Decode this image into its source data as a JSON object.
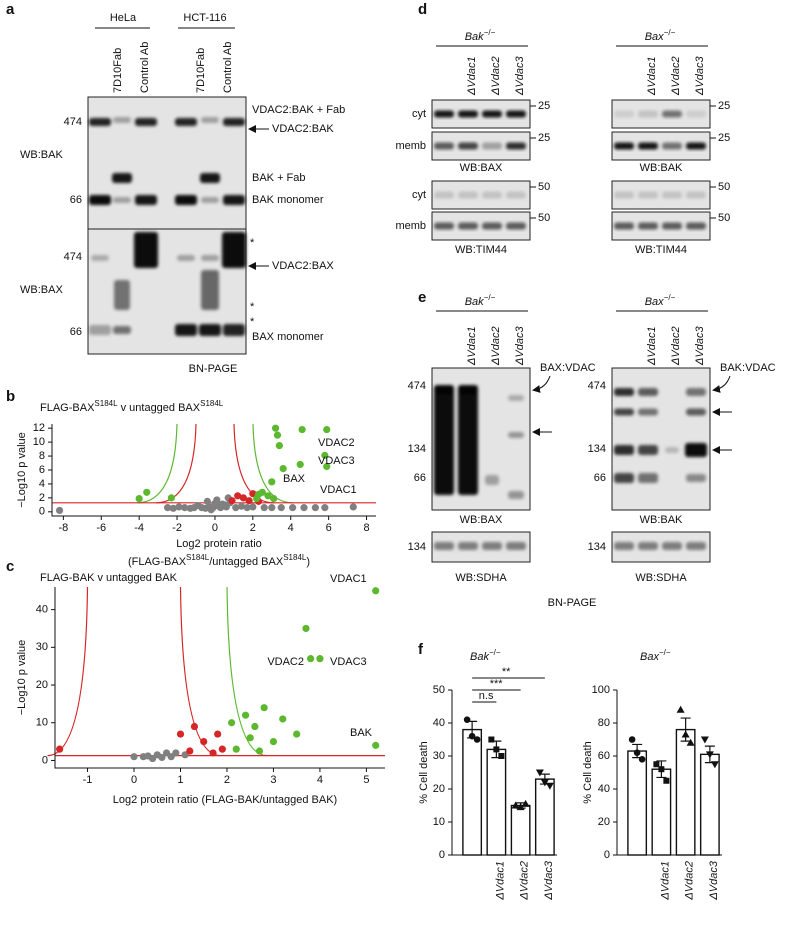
{
  "figure": {
    "panel_a": {
      "panel": "a",
      "cell_lines": [
        "HeLa",
        "HCT-116"
      ],
      "lanes": [
        "7D10Fab",
        "Control Ab",
        "7D10Fab",
        "Control Ab"
      ],
      "blots": [
        {
          "label": "WB:BAK",
          "markers": [
            "474",
            "66"
          ],
          "annotations": [
            "VDAC2:BAK + Fab",
            "VDAC2:BAK",
            "BAK + Fab",
            "BAK monomer"
          ]
        },
        {
          "label": "WB:BAX",
          "markers": [
            "474",
            "66"
          ],
          "annotations": [
            "*",
            "VDAC2:BAX",
            "*",
            "*",
            "BAX monomer"
          ]
        }
      ],
      "footer": "BN-PAGE"
    },
    "panel_d": {
      "panel": "d",
      "rows": [
        "cyt",
        "memb",
        "cyt",
        "memb"
      ],
      "blots": [
        {
          "genotype": [
            "Bak",
            "−/−"
          ],
          "lanes": [
            "ΔVdac1",
            "ΔVdac2",
            "ΔVdac3"
          ],
          "markers": [
            "25",
            "25",
            "50",
            "50"
          ],
          "labels": [
            "WB:BAX",
            "WB:TIM44"
          ]
        },
        {
          "genotype": [
            "Bax",
            "−/−"
          ],
          "lanes": [
            "ΔVdac1",
            "ΔVdac2",
            "ΔVdac3"
          ],
          "markers": [
            "25",
            "25",
            "50",
            "50"
          ],
          "labels": [
            "WB:BAK",
            "WB:TIM44"
          ]
        }
      ]
    },
    "panel_e": {
      "panel": "e",
      "blots": [
        {
          "genotype": [
            "Bak",
            "−/−"
          ],
          "lanes": [
            "ΔVdac1",
            "ΔVdac2",
            "ΔVdac3"
          ],
          "markers": [
            "474",
            "134",
            "66"
          ],
          "complex": "BAX:VDAC",
          "label": "WB:BAX",
          "loading_marker": "134",
          "loading_label": "WB:SDHA"
        },
        {
          "genotype": [
            "Bax",
            "−/−"
          ],
          "lanes": [
            "ΔVdac1",
            "ΔVdac2",
            "ΔVdac3"
          ],
          "markers": [
            "474",
            "134",
            "66"
          ],
          "complex": "BAK:VDAC",
          "label": "WB:BAK",
          "loading_marker": "134",
          "loading_label": "WB:SDHA"
        }
      ],
      "footer": "BN-PAGE"
    }
  },
  "chart_data": [
    {
      "type": "scatter",
      "panel": "b",
      "title": [
        "FLAG-BAX",
        "S184L",
        " v untagged BAX",
        "S184L"
      ],
      "xlabel": [
        [
          "Log2 protein ratio"
        ],
        [
          "(FLAG-BAX",
          "S184L",
          "/untagged BAX",
          "S184L",
          ")"
        ]
      ],
      "ylabel": "−Log10 p value",
      "xlim": [
        -8.6,
        8.5
      ],
      "ylim": [
        -0.6,
        12.6
      ],
      "xticks": [
        -8,
        -6,
        -4,
        -2,
        0,
        2,
        4,
        6,
        8
      ],
      "yticks": [
        0,
        2,
        4,
        6,
        8,
        10,
        12
      ],
      "series": [
        {
          "color": "#808080",
          "x": [
            -8.2,
            -2.5,
            -2.2,
            -1.9,
            -1.6,
            -1.3,
            -1.1,
            -0.9,
            -0.7,
            -0.5,
            -0.3,
            -0.1,
            0,
            0.2,
            0.3,
            0.5,
            0.6,
            0.8,
            1.1,
            1.4,
            1.7,
            2.0,
            2.6,
            3.0,
            3.5,
            4.1,
            4.7,
            5.3,
            5.8,
            7.3,
            -0.4,
            0.1,
            0.4,
            -0.2,
            0.7
          ],
          "y": [
            0.2,
            0.6,
            0.5,
            0.7,
            0.6,
            0.5,
            0.6,
            0.9,
            0.6,
            0.5,
            0.7,
            0.6,
            1.2,
            0.8,
            0.6,
            1.0,
            0.7,
            1.3,
            0.6,
            0.8,
            0.6,
            0.7,
            0.6,
            0.6,
            0.6,
            0.6,
            0.6,
            0.6,
            0.6,
            0.7,
            1.5,
            1.7,
            1.1,
            0.3,
            2.0
          ]
        },
        {
          "color": "#d62728",
          "x": [
            0.9,
            1.2,
            1.5,
            1.8,
            2.0,
            2.3
          ],
          "y": [
            1.6,
            2.3,
            2.0,
            1.6,
            2.6,
            1.5
          ]
        },
        {
          "color": "#5cb82e",
          "x": [
            4.6,
            5.9,
            3.2,
            3.4,
            3.3,
            5.8,
            4.5,
            5.9,
            3.6,
            3.0,
            2.5,
            -4.0,
            -3.6,
            -2.3,
            2.3,
            2.8,
            3.1,
            2.2
          ],
          "y": [
            11.8,
            11.8,
            12.0,
            9.5,
            11.0,
            8.1,
            6.8,
            6.5,
            6.2,
            4.3,
            2.8,
            1.9,
            2.8,
            2.0,
            2.5,
            2.3,
            1.9,
            1.9
          ]
        }
      ],
      "annotations": [
        "VDAC2",
        "VDAC3",
        "BAX",
        "VDAC1"
      ]
    },
    {
      "type": "scatter",
      "panel": "c",
      "title": [
        "FLAG-BAK v untagged BAK"
      ],
      "xlabel": [
        [
          "Log2 protein ratio (FLAG-BAK/untagged BAK)"
        ]
      ],
      "ylabel": "−Log10 p value",
      "xlim": [
        -1.7,
        5.4
      ],
      "ylim": [
        -2,
        46
      ],
      "xticks": [
        -1,
        0,
        1,
        2,
        3,
        4,
        5
      ],
      "yticks": [
        0,
        10,
        20,
        30,
        40
      ],
      "series": [
        {
          "color": "#808080",
          "x": [
            0,
            0.2,
            0.4,
            0.5,
            0.7,
            0.8,
            0.9,
            1.1,
            0.3,
            0.6
          ],
          "y": [
            1,
            1,
            0.5,
            1.5,
            2,
            1,
            2,
            1.5,
            1.2,
            0.8
          ]
        },
        {
          "color": "#d62728",
          "x": [
            -1.6,
            1.0,
            1.3,
            1.5,
            1.8,
            1.9,
            1.2,
            1.7
          ],
          "y": [
            3,
            7,
            9,
            5,
            7,
            3,
            2.5,
            2
          ]
        },
        {
          "color": "#5cb82e",
          "x": [
            5.2,
            3.7,
            4.0,
            3.8,
            5.2,
            2.8,
            2.4,
            3.2,
            2.6,
            2.1,
            3.5,
            2.5,
            3.0,
            2.2,
            2.7
          ],
          "y": [
            45,
            35,
            27,
            27,
            4,
            14,
            12,
            11,
            9,
            10,
            7,
            6,
            5,
            3,
            2.5
          ]
        }
      ],
      "annotations": [
        "VDAC1",
        "VDAC2",
        "VDAC3",
        "BAK"
      ]
    },
    {
      "type": "bar",
      "panel": "f",
      "genotype": [
        "Bak",
        "−/−"
      ],
      "ylabel": "% Cell death",
      "categories": [
        null,
        "ΔVdac1",
        "ΔVdac2",
        "ΔVdac3"
      ],
      "values": [
        38,
        32,
        15,
        23
      ],
      "errors": [
        2.5,
        2.5,
        0.8,
        1.5
      ],
      "points": [
        [
          41,
          36,
          35
        ],
        [
          35,
          32,
          30
        ],
        [
          15,
          14.5,
          15.5
        ],
        [
          25,
          22,
          21
        ]
      ],
      "ylim": [
        0,
        50
      ],
      "yticks": [
        0,
        10,
        20,
        30,
        40,
        50
      ],
      "significance": [
        "n.s",
        "***",
        "**"
      ],
      "color": "#ffffff"
    },
    {
      "type": "bar",
      "genotype": [
        "Bax",
        "−/−"
      ],
      "ylabel": "% Cell death",
      "categories": [
        null,
        "ΔVdac1",
        "ΔVdac2",
        "ΔVdac3"
      ],
      "values": [
        63,
        52,
        76,
        61
      ],
      "errors": [
        4,
        5,
        7,
        5
      ],
      "points": [
        [
          70,
          62,
          58
        ],
        [
          55,
          52,
          45
        ],
        [
          88,
          73,
          68
        ],
        [
          70,
          61,
          55
        ]
      ],
      "ylim": [
        0,
        100
      ],
      "yticks": [
        0,
        20,
        40,
        60,
        80,
        100
      ],
      "color": "#ffffff"
    }
  ]
}
